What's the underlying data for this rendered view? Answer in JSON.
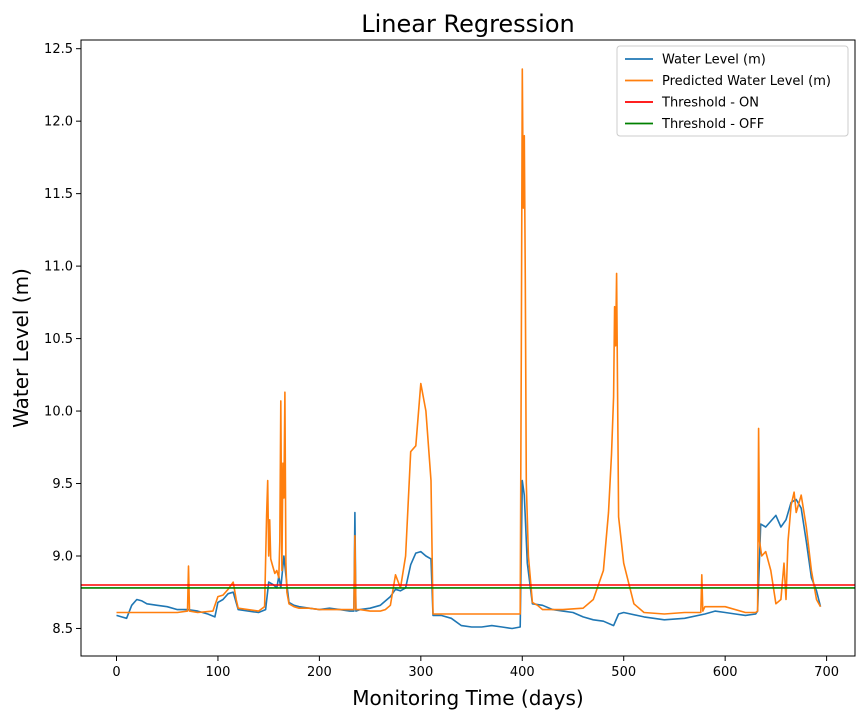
{
  "chart_data": {
    "type": "line",
    "title": "Linear Regression",
    "xlabel": "Monitoring Time (days)",
    "ylabel": "Water Level (m)",
    "xlim": [
      -35,
      728
    ],
    "ylim": [
      8.31,
      12.56
    ],
    "xticks": [
      0,
      100,
      200,
      300,
      400,
      500,
      600,
      700
    ],
    "yticks": [
      8.5,
      9.0,
      9.5,
      10.0,
      10.5,
      11.0,
      11.5,
      12.0,
      12.5
    ],
    "ytick_labels": [
      "8.5",
      "9.0",
      "9.5",
      "10.0",
      "10.5",
      "11.0",
      "11.5",
      "12.0",
      "12.5"
    ],
    "grid": false,
    "legend_position": "top-right",
    "series": [
      {
        "name": "Water Level (m)",
        "color": "#1f77b4",
        "x": [
          0,
          5,
          10,
          15,
          20,
          25,
          30,
          40,
          50,
          60,
          70,
          80,
          90,
          97,
          100,
          105,
          110,
          115,
          120,
          130,
          140,
          147,
          150,
          155,
          158,
          160,
          162,
          165,
          168,
          170,
          175,
          180,
          190,
          200,
          210,
          220,
          230,
          234,
          235,
          236,
          240,
          250,
          260,
          270,
          275,
          280,
          285,
          290,
          295,
          300,
          305,
          310,
          312,
          320,
          330,
          340,
          350,
          360,
          370,
          380,
          390,
          398,
          400,
          402,
          405,
          410,
          420,
          430,
          440,
          450,
          460,
          470,
          480,
          490,
          495,
          500,
          520,
          540,
          560,
          580,
          590,
          600,
          610,
          620,
          630,
          632,
          635,
          640,
          650,
          655,
          660,
          665,
          670,
          675,
          680,
          685,
          690,
          694
        ],
        "y": [
          8.59,
          8.58,
          8.57,
          8.66,
          8.7,
          8.69,
          8.67,
          8.66,
          8.65,
          8.63,
          8.63,
          8.62,
          8.6,
          8.58,
          8.68,
          8.7,
          8.74,
          8.75,
          8.63,
          8.62,
          8.61,
          8.63,
          8.82,
          8.8,
          8.78,
          8.86,
          8.78,
          9.0,
          8.8,
          8.68,
          8.66,
          8.65,
          8.64,
          8.63,
          8.64,
          8.63,
          8.62,
          8.62,
          9.3,
          8.62,
          8.63,
          8.64,
          8.66,
          8.72,
          8.77,
          8.76,
          8.78,
          8.94,
          9.02,
          9.03,
          9.0,
          8.98,
          8.59,
          8.59,
          8.57,
          8.52,
          8.51,
          8.51,
          8.52,
          8.51,
          8.5,
          8.51,
          9.52,
          9.42,
          8.95,
          8.67,
          8.66,
          8.63,
          8.62,
          8.61,
          8.58,
          8.56,
          8.55,
          8.52,
          8.6,
          8.61,
          8.58,
          8.56,
          8.57,
          8.6,
          8.62,
          8.61,
          8.6,
          8.59,
          8.6,
          8.62,
          9.22,
          9.2,
          9.28,
          9.2,
          9.25,
          9.37,
          9.39,
          9.33,
          9.1,
          8.85,
          8.76,
          8.65
        ]
      },
      {
        "name": "Predicted Water Level (m)",
        "color": "#ff7f0e",
        "x": [
          0,
          30,
          60,
          70,
          71,
          72,
          80,
          95,
          100,
          105,
          110,
          115,
          118,
          120,
          140,
          146,
          148,
          149,
          150,
          151,
          152,
          154,
          156,
          158,
          160,
          161,
          162,
          163,
          164,
          165,
          166,
          167,
          168,
          170,
          175,
          180,
          190,
          200,
          210,
          220,
          230,
          234,
          235,
          236,
          240,
          250,
          260,
          265,
          270,
          275,
          280,
          285,
          290,
          295,
          300,
          305,
          310,
          312,
          313,
          330,
          360,
          398,
          399,
          400,
          401,
          402,
          403,
          404,
          406,
          410,
          415,
          420,
          440,
          460,
          470,
          480,
          485,
          488,
          490,
          491,
          492,
          493,
          495,
          500,
          510,
          520,
          540,
          560,
          576,
          577,
          578,
          580,
          600,
          620,
          630,
          632,
          633,
          634,
          636,
          640,
          645,
          650,
          655,
          658,
          660,
          662,
          665,
          668,
          670,
          675,
          680,
          685,
          690,
          694
        ],
        "y": [
          8.61,
          8.61,
          8.61,
          8.62,
          8.93,
          8.62,
          8.61,
          8.62,
          8.72,
          8.73,
          8.77,
          8.82,
          8.7,
          8.64,
          8.62,
          8.65,
          9.28,
          9.52,
          9.0,
          9.25,
          8.98,
          8.93,
          8.88,
          8.9,
          8.85,
          9.1,
          10.07,
          8.9,
          9.64,
          9.4,
          10.13,
          8.95,
          8.75,
          8.67,
          8.65,
          8.64,
          8.64,
          8.63,
          8.63,
          8.63,
          8.63,
          8.63,
          9.14,
          8.63,
          8.63,
          8.62,
          8.62,
          8.63,
          8.66,
          8.87,
          8.78,
          9.0,
          9.72,
          9.76,
          10.19,
          10.0,
          9.52,
          8.6,
          8.6,
          8.6,
          8.6,
          8.6,
          10.4,
          12.36,
          11.4,
          11.9,
          10.9,
          9.5,
          9.0,
          8.68,
          8.66,
          8.63,
          8.63,
          8.64,
          8.7,
          8.9,
          9.3,
          9.7,
          10.1,
          10.72,
          10.45,
          10.95,
          9.27,
          8.95,
          8.67,
          8.61,
          8.6,
          8.61,
          8.61,
          8.87,
          8.62,
          8.65,
          8.65,
          8.61,
          8.61,
          8.62,
          9.88,
          9.1,
          9.0,
          9.03,
          8.9,
          8.67,
          8.7,
          8.95,
          8.7,
          9.1,
          9.35,
          9.44,
          9.3,
          9.42,
          9.2,
          8.9,
          8.7,
          8.65
        ]
      },
      {
        "name": "Threshold - ON",
        "color": "#ff0000",
        "x": [
          -35,
          728
        ],
        "y": [
          8.8,
          8.8
        ]
      },
      {
        "name": "Threshold - OFF",
        "color": "#008000",
        "x": [
          -35,
          728
        ],
        "y": [
          8.78,
          8.78
        ]
      }
    ]
  }
}
